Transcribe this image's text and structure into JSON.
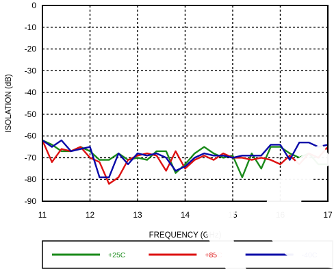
{
  "chart_data": {
    "type": "line",
    "title": "",
    "xlabel": "FREQUENCY (GHz)",
    "ylabel": "ISOLATION (dB)",
    "xlim": [
      11,
      17
    ],
    "ylim": [
      -90,
      0
    ],
    "xticks": [
      "11",
      "12",
      "13",
      "14",
      "15",
      "16",
      "17"
    ],
    "yticks": [
      "0",
      "-10",
      "-20",
      "-30",
      "-40",
      "-50",
      "-60",
      "-70",
      "-80",
      "-90"
    ],
    "grid": true,
    "legend_position": "bottom",
    "series": [
      {
        "name": "+25C",
        "color": "#1a8a1a",
        "x": [
          11,
          11.2,
          11.4,
          11.6,
          11.8,
          12.0,
          12.2,
          12.4,
          12.6,
          12.8,
          13.0,
          13.2,
          13.4,
          13.6,
          13.8,
          14.0,
          14.2,
          14.4,
          14.6,
          14.8,
          15.0,
          15.2,
          15.4,
          15.6,
          15.8,
          16.0,
          16.2,
          16.4,
          16.6,
          16.8,
          17.0
        ],
        "y": [
          -62,
          -64,
          -67,
          -67,
          -65,
          -67,
          -71,
          -71,
          -68,
          -71,
          -70,
          -71,
          -67,
          -67,
          -77,
          -73,
          -68,
          -65,
          -68,
          -70,
          -69,
          -79,
          -68,
          -75,
          -65,
          -65,
          -68,
          -70,
          -68,
          -73,
          -73
        ]
      },
      {
        "name": "+85C",
        "color": "#dd1111",
        "x": [
          11,
          11.2,
          11.4,
          11.6,
          11.8,
          12.0,
          12.2,
          12.4,
          12.6,
          12.8,
          13.0,
          13.2,
          13.4,
          13.6,
          13.8,
          14.0,
          14.2,
          14.4,
          14.6,
          14.8,
          15.0,
          15.2,
          15.4,
          15.6,
          15.8,
          16.0,
          16.2,
          16.4,
          16.6,
          16.8,
          17.0
        ],
        "y": [
          -62,
          -72,
          -66,
          -67,
          -65,
          -70,
          -72,
          -82,
          -79,
          -71,
          -69,
          -68,
          -69,
          -76,
          -67,
          -75,
          -71,
          -69,
          -71,
          -68,
          -70,
          -70,
          -71,
          -70,
          -71,
          -73,
          -69,
          -73,
          -68,
          -70,
          -65
        ]
      },
      {
        "name": "-40C",
        "color": "#0a0aa8",
        "x": [
          11,
          11.2,
          11.4,
          11.6,
          11.8,
          12.0,
          12.2,
          12.4,
          12.6,
          12.8,
          13.0,
          13.2,
          13.4,
          13.6,
          13.8,
          14.0,
          14.2,
          14.4,
          14.6,
          14.8,
          15.0,
          15.2,
          15.4,
          15.6,
          15.8,
          16.0,
          16.2,
          16.4,
          16.6,
          16.8,
          17.0
        ],
        "y": [
          -62,
          -65,
          -62,
          -67,
          -66,
          -65,
          -79,
          -79,
          -68,
          -73,
          -68,
          -69,
          -68,
          -70,
          -76,
          -74,
          -70,
          -68,
          -69,
          -69,
          -70,
          -69,
          -69,
          -69,
          -64,
          -64,
          -71,
          -63,
          -63,
          -65,
          -64
        ]
      }
    ]
  }
}
